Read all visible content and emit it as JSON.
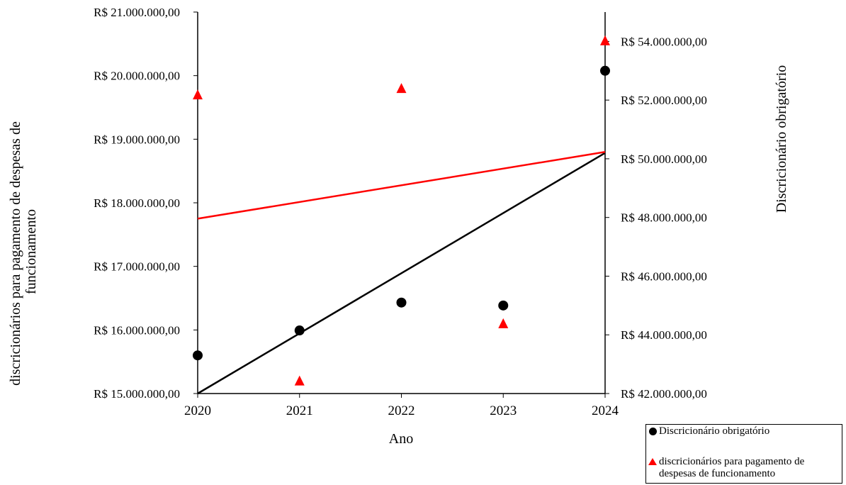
{
  "chart_data": {
    "type": "scatter",
    "x": [
      2020,
      2021,
      2022,
      2023,
      2024
    ],
    "xlabel": "Ano",
    "xlim": [
      2020,
      2024
    ],
    "ylabel_left": "discricionários para pagamento de despesas de funcionamento",
    "ylabel_right": "Discricionário obrigatório",
    "ylim_left": [
      15000000,
      21000000
    ],
    "ylim_right": [
      42000000,
      55000000
    ],
    "yticks_left": [
      "R$ 15.000.000,00",
      "R$ 16.000.000,00",
      "R$ 17.000.000,00",
      "R$ 18.000.000,00",
      "R$ 19.000.000,00",
      "R$ 20.000.000,00",
      "R$ 21.000.000,00"
    ],
    "yticks_right": [
      "R$ 42.000.000,00",
      "R$ 44.000.000,00",
      "R$ 46.000.000,00",
      "R$ 48.000.000,00",
      "R$ 50.000.000,00",
      "R$ 52.000.000,00",
      "R$ 54.000.000,00"
    ],
    "grid": false,
    "legend_position": "bottom-right",
    "series": [
      {
        "name": "Discricionário obrigatório",
        "axis": "right",
        "marker": "circle",
        "color": "#000000",
        "values": [
          43300000,
          44150000,
          45100000,
          45000000,
          53000000
        ],
        "trendline": [
          42000000,
          50200000
        ]
      },
      {
        "name": "discricionários para pagamento de despesas de funcionamento",
        "axis": "left",
        "marker": "triangle",
        "color": "#ff0000",
        "values": [
          19700000,
          15200000,
          19800000,
          16100000,
          20550000
        ],
        "trendline": [
          17750000,
          18800000
        ]
      }
    ]
  },
  "legend": {
    "item1": "Discricionário obrigatório",
    "item2_line1": "discricionários para pagamento de",
    "item2_line2": "despesas de funcionamento"
  },
  "ylabel_left_line1": "discricionários para pagamento de despesas de",
  "ylabel_left_line2": "funcionamento"
}
